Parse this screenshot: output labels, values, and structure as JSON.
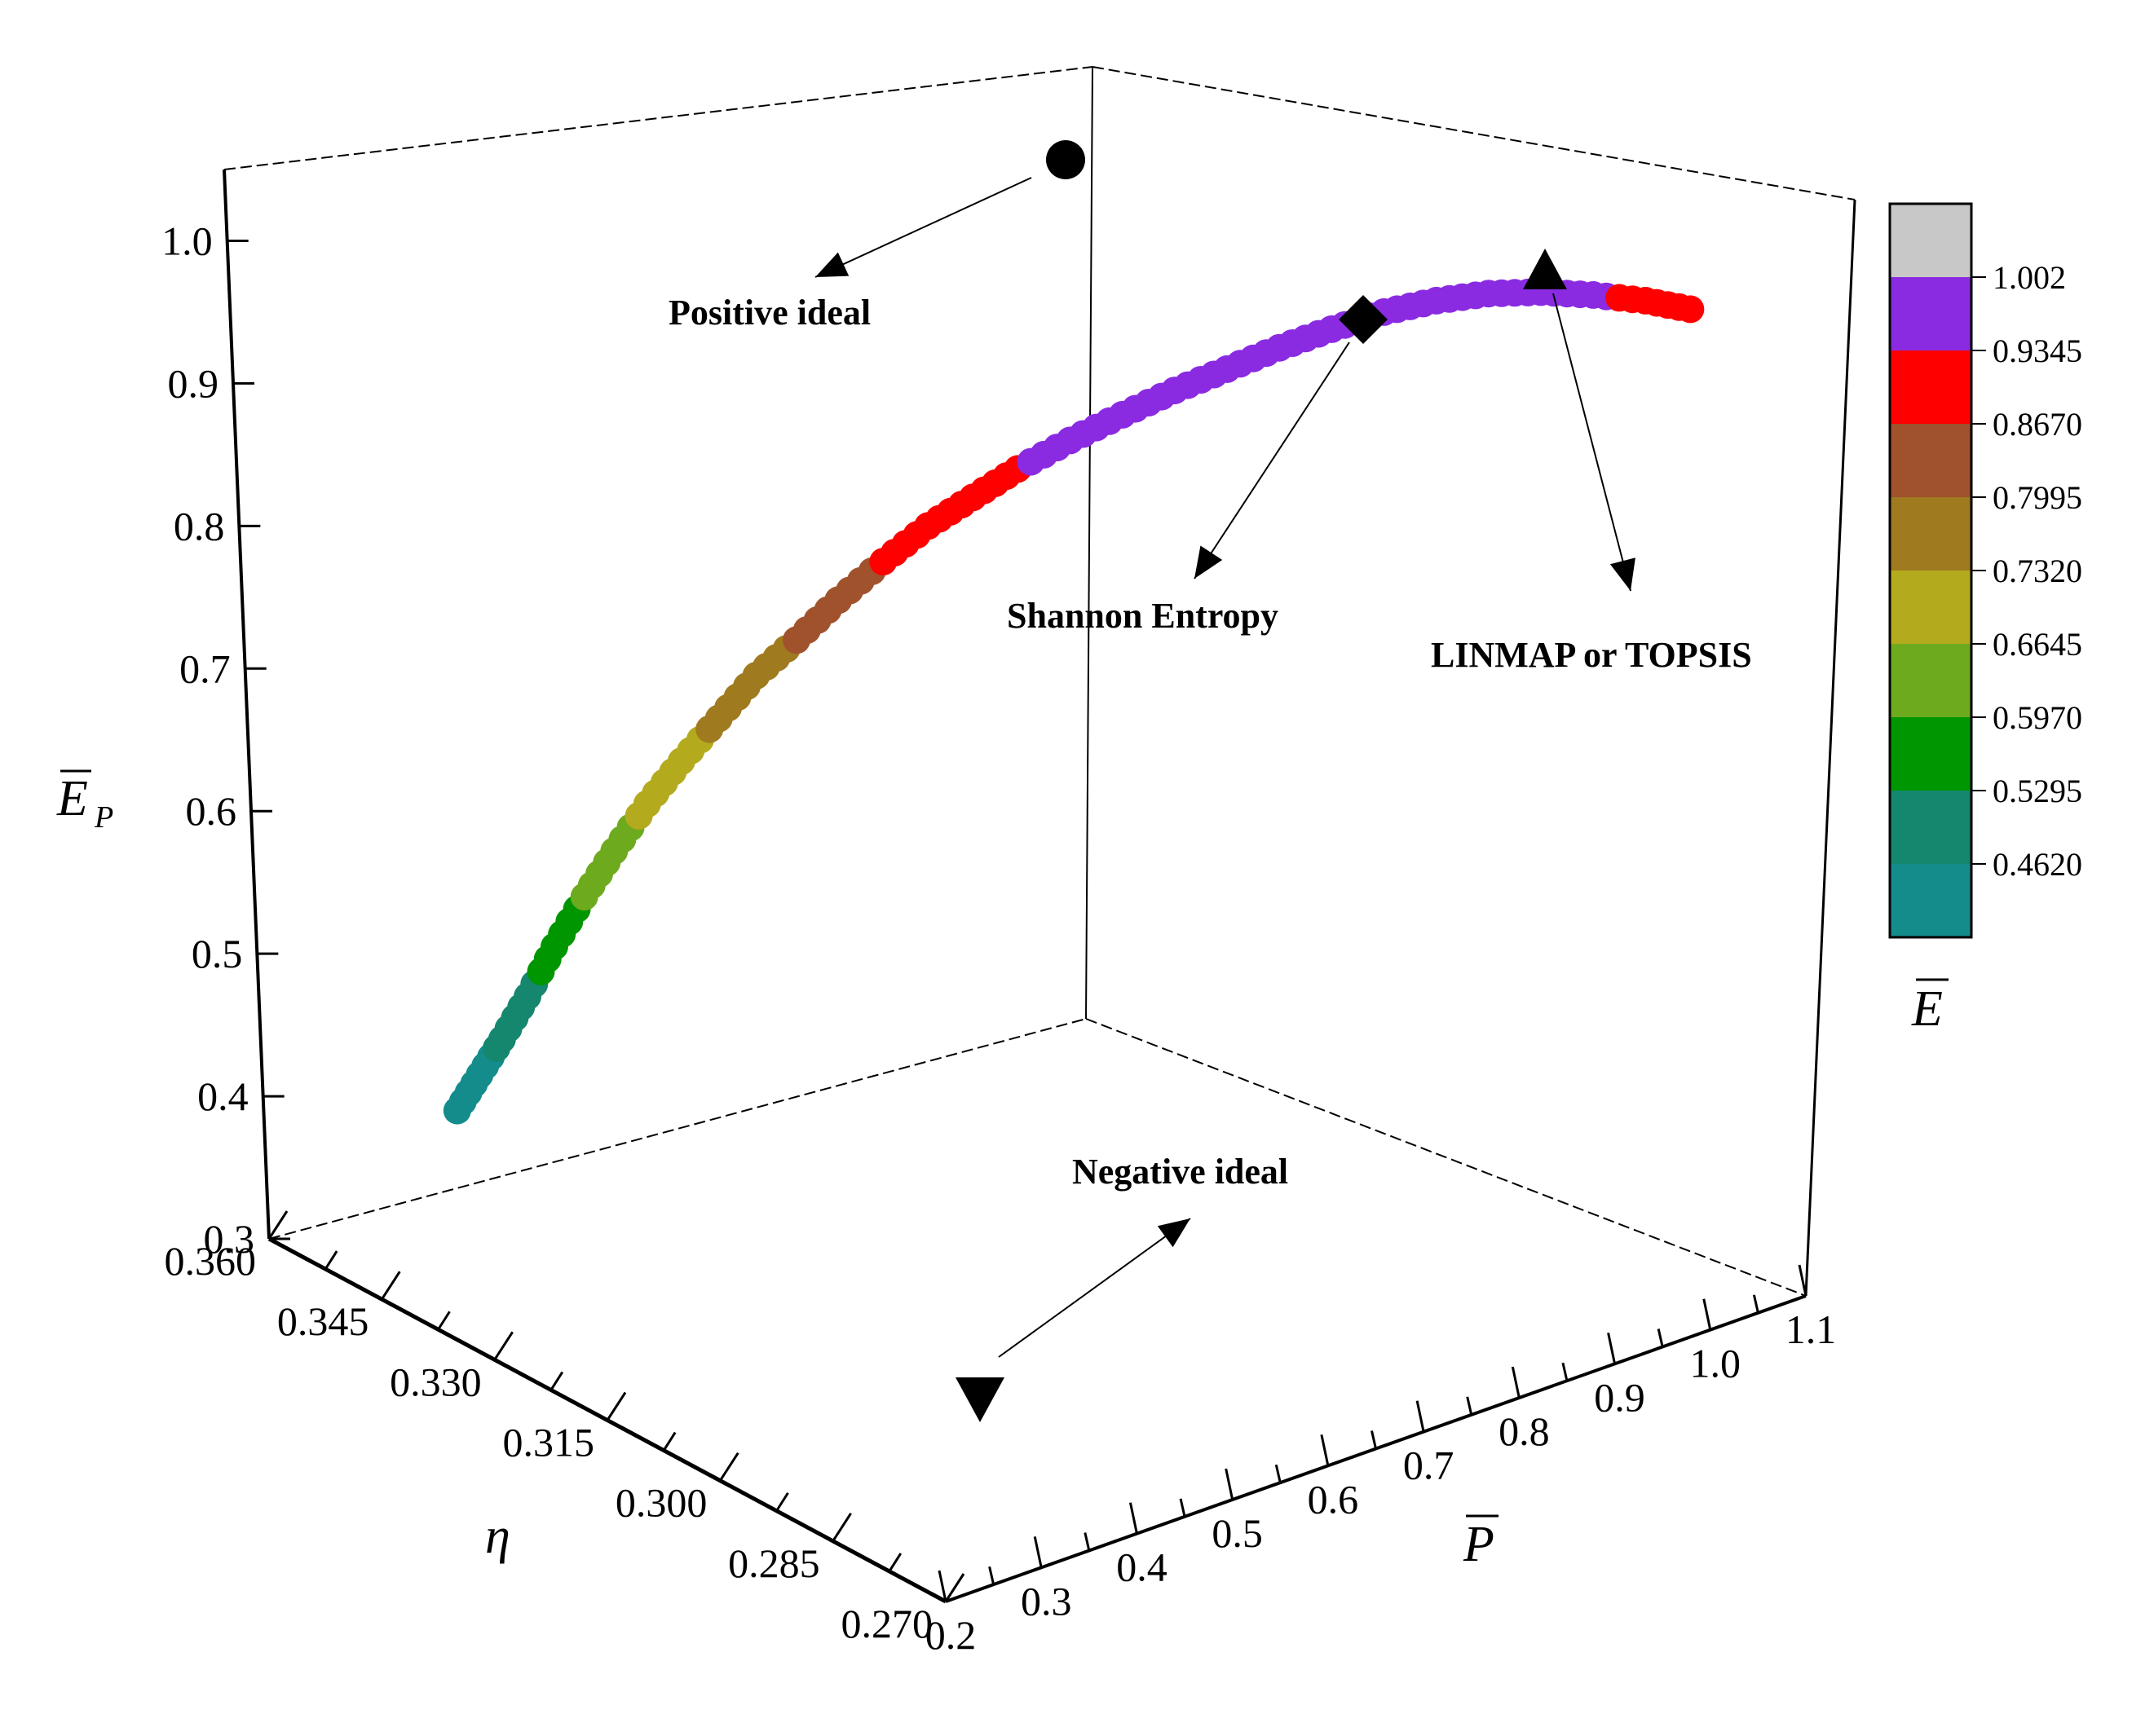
{
  "chart_data": {
    "type": "scatter",
    "subtype": "3d-scatter",
    "axes": {
      "x": {
        "label": "P",
        "overbar": true,
        "range": [
          0.2,
          1.1
        ],
        "ticks": [
          "0.2",
          "0.3",
          "0.4",
          "0.5",
          "0.6",
          "0.7",
          "0.8",
          "0.9",
          "1.0",
          "1.1"
        ]
      },
      "y": {
        "label": "η",
        "overbar": false,
        "range": [
          0.36,
          0.27
        ],
        "ticks": [
          "0.360",
          "0.345",
          "0.330",
          "0.315",
          "0.300",
          "0.285",
          "0.270"
        ]
      },
      "z": {
        "label": "E",
        "subscript": "P",
        "overbar": true,
        "range": [
          0.3,
          1.05
        ],
        "ticks": [
          "0.3",
          "0.4",
          "0.5",
          "0.6",
          "0.7",
          "0.8",
          "0.9",
          "1.0"
        ]
      }
    },
    "colorbar": {
      "label": "E",
      "overbar": true,
      "ticks": [
        "1.002",
        "0.9345",
        "0.8670",
        "0.7995",
        "0.7320",
        "0.6645",
        "0.5970",
        "0.5295",
        "0.4620"
      ],
      "bands": [
        "#c8c8c8",
        "#8a2be2",
        "#ff0000",
        "#a0522d",
        "#a07a1e",
        "#b4aa1e",
        "#6eaa1e",
        "#009600",
        "#14876e",
        "#148c8c"
      ]
    },
    "pareto_front": {
      "points": [
        {
          "P": 0.225,
          "Ep": 0.39,
          "E": 0.4
        },
        {
          "P": 0.24,
          "Ep": 0.415,
          "E": 0.44
        },
        {
          "P": 0.255,
          "Ep": 0.44,
          "E": 0.47
        },
        {
          "P": 0.272,
          "Ep": 0.47,
          "E": 0.51
        },
        {
          "P": 0.29,
          "Ep": 0.505,
          "E": 0.56
        },
        {
          "P": 0.31,
          "Ep": 0.54,
          "E": 0.6
        },
        {
          "P": 0.33,
          "Ep": 0.572,
          "E": 0.64
        },
        {
          "P": 0.352,
          "Ep": 0.605,
          "E": 0.68
        },
        {
          "P": 0.375,
          "Ep": 0.635,
          "E": 0.71
        },
        {
          "P": 0.4,
          "Ep": 0.665,
          "E": 0.74
        },
        {
          "P": 0.425,
          "Ep": 0.695,
          "E": 0.77
        },
        {
          "P": 0.452,
          "Ep": 0.72,
          "E": 0.8
        },
        {
          "P": 0.48,
          "Ep": 0.748,
          "E": 0.83
        },
        {
          "P": 0.51,
          "Ep": 0.775,
          "E": 0.87
        },
        {
          "P": 0.54,
          "Ep": 0.8,
          "E": 0.89
        },
        {
          "P": 0.57,
          "Ep": 0.82,
          "E": 0.9
        },
        {
          "P": 0.6,
          "Ep": 0.84,
          "E": 0.93
        },
        {
          "P": 0.635,
          "Ep": 0.86,
          "E": 0.95
        },
        {
          "P": 0.67,
          "Ep": 0.878,
          "E": 0.96
        },
        {
          "P": 0.705,
          "Ep": 0.895,
          "E": 0.97
        },
        {
          "P": 0.74,
          "Ep": 0.91,
          "E": 0.975
        },
        {
          "P": 0.775,
          "Ep": 0.925,
          "E": 0.98
        },
        {
          "P": 0.81,
          "Ep": 0.938,
          "E": 0.985
        },
        {
          "P": 0.845,
          "Ep": 0.95,
          "E": 0.99
        },
        {
          "P": 0.88,
          "Ep": 0.958,
          "E": 0.99
        },
        {
          "P": 0.915,
          "Ep": 0.963,
          "E": 0.985
        },
        {
          "P": 0.95,
          "Ep": 0.964,
          "E": 0.975
        },
        {
          "P": 0.985,
          "Ep": 0.962,
          "E": 0.95
        },
        {
          "P": 1.02,
          "Ep": 0.958,
          "E": 0.9
        },
        {
          "P": 1.05,
          "Ep": 0.952,
          "E": 0.88
        }
      ]
    },
    "annotations": [
      {
        "name": "positive-ideal",
        "text": "Positive ideal",
        "marker": "circle"
      },
      {
        "name": "shannon-entropy",
        "text": "Shannon Entropy",
        "marker": "diamond"
      },
      {
        "name": "linmap-topsis",
        "text": "LINMAP or TOPSIS",
        "marker": "triangle-up"
      },
      {
        "name": "negative-ideal",
        "text": "Negative ideal",
        "marker": "triangle-down"
      }
    ]
  }
}
